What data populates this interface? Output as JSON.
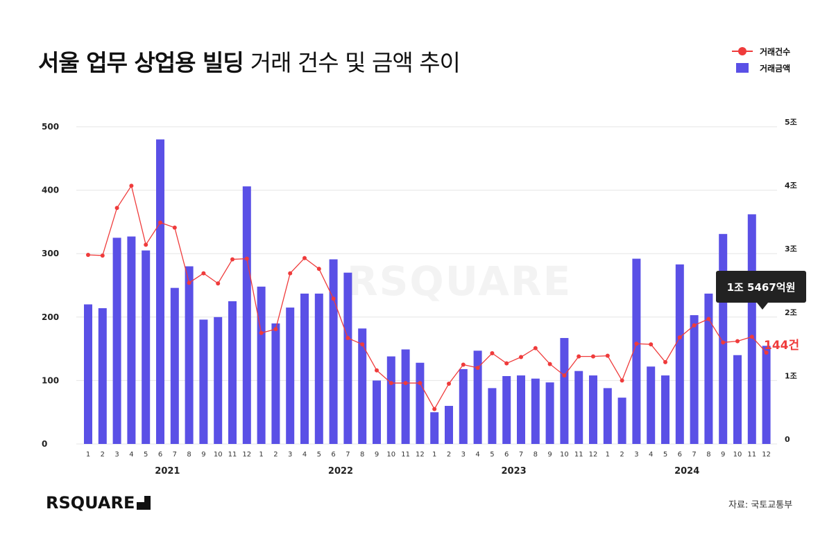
{
  "title": {
    "bold": "서울 업무 상업용 빌딩",
    "light": "거래 건수 및 금액 추이"
  },
  "legend": {
    "line": "거래건수",
    "bar": "거래금액"
  },
  "colors": {
    "bar": "#5a50e6",
    "line": "#ef3b3b",
    "grid": "#e5e5e5"
  },
  "callout": "1조 5467억원",
  "latest_label": "144건",
  "watermark": "RSQUARE",
  "logo": "RSQUARE",
  "source": "자료: 국토교통부",
  "chart_data": {
    "type": "bar",
    "categories": [
      "1",
      "2",
      "3",
      "4",
      "5",
      "6",
      "7",
      "8",
      "9",
      "10",
      "11",
      "12",
      "1",
      "2",
      "3",
      "4",
      "5",
      "6",
      "7",
      "8",
      "9",
      "10",
      "11",
      "12",
      "1",
      "2",
      "3",
      "4",
      "5",
      "6",
      "7",
      "8",
      "9",
      "10",
      "11",
      "12",
      "1",
      "2",
      "3",
      "4",
      "5",
      "6",
      "7",
      "8",
      "9",
      "10",
      "11",
      "12"
    ],
    "years": [
      "2021",
      "2022",
      "2023",
      "2024"
    ],
    "y_left": {
      "ticks": [
        "500",
        "400",
        "300",
        "200",
        "100",
        "0"
      ],
      "ylim": [
        0,
        500
      ]
    },
    "y_right": {
      "ticks": [
        "5조",
        "4조",
        "3조",
        "2조",
        "1조",
        "0"
      ],
      "ylim": [
        0,
        5
      ]
    },
    "series": [
      {
        "type": "bar",
        "axis": "right",
        "values": [
          2.2,
          2.14,
          3.25,
          3.27,
          3.05,
          4.8,
          2.46,
          2.8,
          1.96,
          2.0,
          2.25,
          4.06,
          2.48,
          1.9,
          2.15,
          2.37,
          2.37,
          2.91,
          2.7,
          1.82,
          1.0,
          1.38,
          1.49,
          1.28,
          0.5,
          0.6,
          1.18,
          1.47,
          0.88,
          1.07,
          1.08,
          1.03,
          0.97,
          1.67,
          1.15,
          1.08,
          0.88,
          0.73,
          2.92,
          1.22,
          1.08,
          2.83,
          2.03,
          2.37,
          3.31,
          1.4,
          3.62,
          1.5467
        ]
      },
      {
        "type": "line",
        "axis": "left",
        "values": [
          298,
          297,
          372,
          407,
          314,
          349,
          341,
          254,
          269,
          253,
          291,
          292,
          175,
          181,
          269,
          293,
          276,
          229,
          167,
          157,
          116,
          96,
          96,
          96,
          55,
          95,
          125,
          120,
          143,
          127,
          137,
          151,
          126,
          108,
          138,
          138,
          139,
          100,
          158,
          157,
          129,
          168,
          187,
          197,
          160,
          162,
          169,
          144
        ]
      }
    ]
  }
}
